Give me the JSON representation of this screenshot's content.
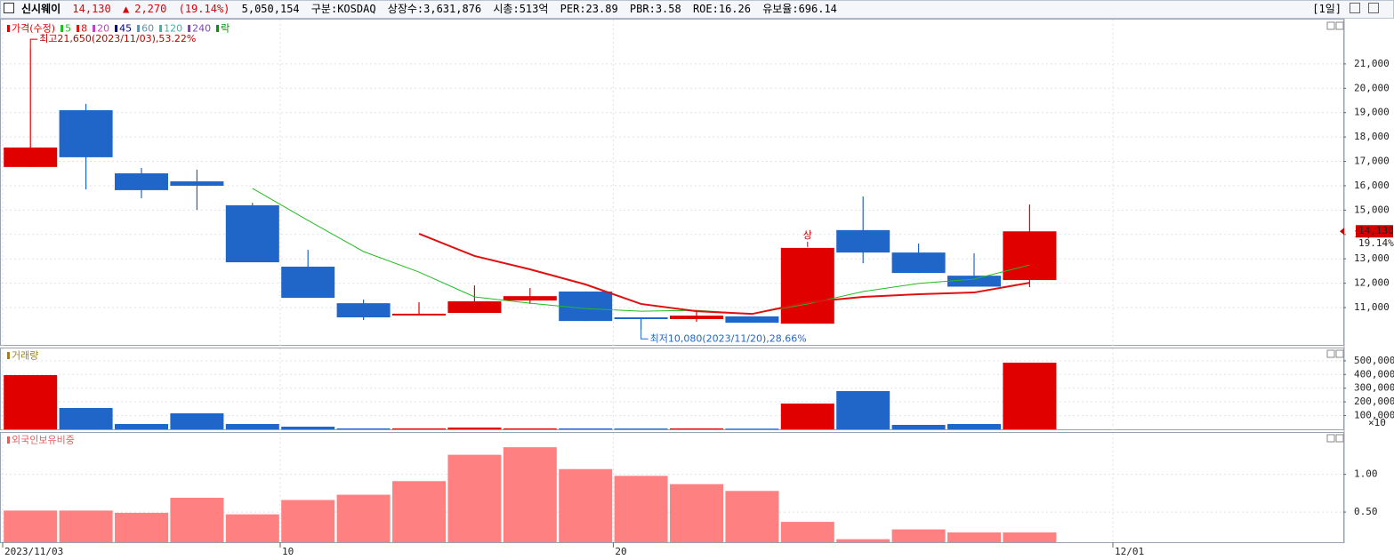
{
  "header": {
    "name": "신시웨이",
    "price": "14,130",
    "arrow": "▲",
    "change": "2,270",
    "change_pct": "(19.14%)",
    "volume": "5,050,154",
    "market": "구분:KOSDAQ",
    "shares": "상장수:3,631,876",
    "cap": "시총:513억",
    "per": "PER:23.89",
    "pbr": "PBR:3.58",
    "roe": "ROE:16.26",
    "reserve": "유보율:696.14",
    "period": "[1일]"
  },
  "chart_data": [
    {
      "type": "candlestick",
      "up_color": "#e00000",
      "down_color": "#1f66c8",
      "series": [
        {
          "name": "가격(수정)",
          "color": "#e00000"
        },
        {
          "name": "5",
          "color": "#22bb22",
          "values": [
            null,
            null,
            null,
            null,
            15890,
            14580,
            13300,
            12460,
            11440,
            11180,
            10960,
            10850,
            10890,
            10740,
            11150,
            11660,
            11990,
            12170,
            12750,
            null,
            null
          ]
        },
        {
          "name": "8",
          "color": "#e01010",
          "values": [
            null,
            null,
            null,
            null,
            null,
            null,
            null,
            14030,
            13120,
            12570,
            11950,
            11150,
            10850,
            10740,
            11220,
            11440,
            11550,
            11620,
            12020,
            null,
            null
          ]
        },
        {
          "name": "20",
          "color": "#c040c0"
        },
        {
          "name": "45",
          "color": "#000080"
        },
        {
          "name": "60",
          "color": "#6090b0"
        },
        {
          "name": "120",
          "color": "#40b0b0"
        },
        {
          "name": "240",
          "color": "#8040c0"
        },
        {
          "name": "락",
          "color": "#009000"
        }
      ],
      "open": [
        16770,
        19100,
        16510,
        16180,
        15200,
        12680,
        11180,
        10740,
        10780,
        11290,
        11660,
        10600,
        10530,
        10640,
        10340,
        14180,
        13260,
        12310,
        12130,
        null,
        null
      ],
      "high": [
        21650,
        19360,
        16730,
        16660,
        15300,
        13370,
        11330,
        11220,
        11910,
        11800,
        11660,
        10600,
        10820,
        10640,
        13450,
        15560,
        13630,
        13230,
        15230,
        null,
        null
      ],
      "low": [
        16770,
        15850,
        15490,
        15010,
        12860,
        11400,
        10490,
        10740,
        10780,
        11150,
        10450,
        10080,
        10420,
        10380,
        10340,
        12820,
        12420,
        11860,
        11840,
        null,
        null
      ],
      "close": [
        17570,
        17170,
        15820,
        16000,
        12860,
        11400,
        10600,
        10750,
        11260,
        11470,
        10450,
        10530,
        10670,
        10380,
        13450,
        13260,
        12420,
        11860,
        14130,
        null,
        null
      ],
      "high_annotation": "최고21,650(2023/11/03),53.22%",
      "low_annotation": "최저10,080(2023/11/20),28.66%",
      "limit_up_marker": {
        "text": "상",
        "index": 14
      },
      "last_label": "14,130",
      "last_change": "19.14%",
      "ylim": [
        9470,
        22820
      ],
      "yticks": [
        {
          "value": 11000,
          "label": "11,000"
        },
        {
          "value": 12000,
          "label": "12,000"
        },
        {
          "value": 13000,
          "label": "13,000"
        },
        {
          "value": 14000,
          "label": "14,000"
        },
        {
          "value": 15000,
          "label": "15,000"
        },
        {
          "value": 16000,
          "label": "16,000"
        },
        {
          "value": 17000,
          "label": "17,000"
        },
        {
          "value": 18000,
          "label": "18,000"
        },
        {
          "value": 19000,
          "label": "19,000"
        },
        {
          "value": 20000,
          "label": "20,000"
        },
        {
          "value": 21000,
          "label": "21,000"
        }
      ],
      "grid": true
    },
    {
      "type": "bar",
      "label": "거래량",
      "label_color": "#a08020",
      "unit_label": "×10",
      "values": [
        395600,
        155600,
        38900,
        116700,
        38900,
        19500,
        6500,
        6500,
        13000,
        6500,
        6500,
        6000,
        6500,
        5000,
        188000,
        278900,
        32400,
        38900,
        486400,
        null,
        null
      ],
      "ylim": [
        0,
        590000
      ],
      "yticks": [
        {
          "value": 100000,
          "label": "100,000"
        },
        {
          "value": 200000,
          "label": "200,000"
        },
        {
          "value": 300000,
          "label": "300,000"
        },
        {
          "value": 400000,
          "label": "400,000"
        },
        {
          "value": 500000,
          "label": "500,000"
        }
      ],
      "grid": true
    },
    {
      "type": "bar",
      "label": "외국인보유비중",
      "label_color": "#e06060",
      "color": "#ff8080",
      "categories": [
        "2023/11/03",
        null,
        null,
        null,
        null,
        "10",
        null,
        null,
        null,
        null,
        null,
        "20",
        null,
        null,
        null,
        null,
        null,
        null,
        null,
        null,
        "12/01"
      ],
      "values": [
        0.52,
        0.52,
        0.49,
        0.69,
        0.47,
        0.66,
        0.73,
        0.91,
        1.26,
        1.36,
        1.07,
        0.98,
        0.87,
        0.78,
        0.37,
        0.14,
        0.27,
        0.23,
        0.23,
        null,
        null
      ],
      "ylim": [
        0.1,
        1.55
      ],
      "yticks": [
        {
          "value": 0.5,
          "label": "0.50"
        },
        {
          "value": 1.0,
          "label": "1.00"
        }
      ],
      "grid": true
    }
  ]
}
